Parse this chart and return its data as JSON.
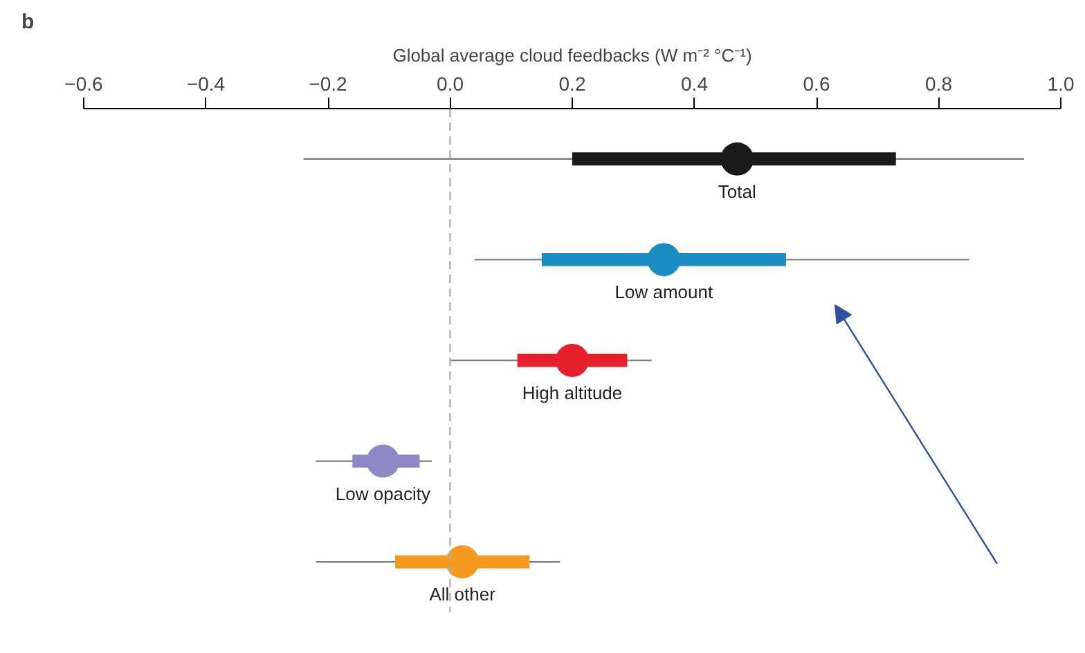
{
  "chart_data": {
    "type": "box",
    "orientation": "horizontal",
    "xlabel": "Global average cloud feedbacks (W m⁻² °C⁻¹)",
    "categories": [
      "Total",
      "Low amount",
      "High altitude",
      "Low opacity",
      "All other"
    ],
    "colors": [
      "#1a1a1a",
      "#1b8dc2",
      "#e3202b",
      "#8e88c6",
      "#f49b1f"
    ],
    "boxes": [
      {
        "low": -0.24,
        "q1": 0.2,
        "median": 0.47,
        "q3": 0.73,
        "high": 0.94
      },
      {
        "low": 0.04,
        "q1": 0.15,
        "median": 0.35,
        "q3": 0.55,
        "high": 0.85
      },
      {
        "low": 0.0,
        "q1": 0.11,
        "median": 0.2,
        "q3": 0.29,
        "high": 0.33
      },
      {
        "low": -0.22,
        "q1": -0.16,
        "median": -0.11,
        "q3": -0.05,
        "high": -0.03
      },
      {
        "low": -0.22,
        "q1": -0.09,
        "median": 0.02,
        "q3": 0.13,
        "high": 0.18
      }
    ],
    "xlim": [
      -0.6,
      1.0
    ],
    "xticks": [
      {
        "value": -0.6,
        "label": "−0.6"
      },
      {
        "value": -0.4,
        "label": "−0.4"
      },
      {
        "value": -0.2,
        "label": "−0.2"
      },
      {
        "value": 0.0,
        "label": "0.0"
      },
      {
        "value": 0.2,
        "label": "0.2"
      },
      {
        "value": 0.4,
        "label": "0.4"
      },
      {
        "value": 0.6,
        "label": "0.6"
      },
      {
        "value": 0.8,
        "label": "0.8"
      },
      {
        "value": 1.0,
        "label": "1.0"
      }
    ],
    "ref_lines": [
      {
        "axis": "x",
        "value": 0,
        "color": "#b0b0b0",
        "line_style": "dashed"
      }
    ],
    "grid": false,
    "annotations": [
      "b"
    ]
  }
}
